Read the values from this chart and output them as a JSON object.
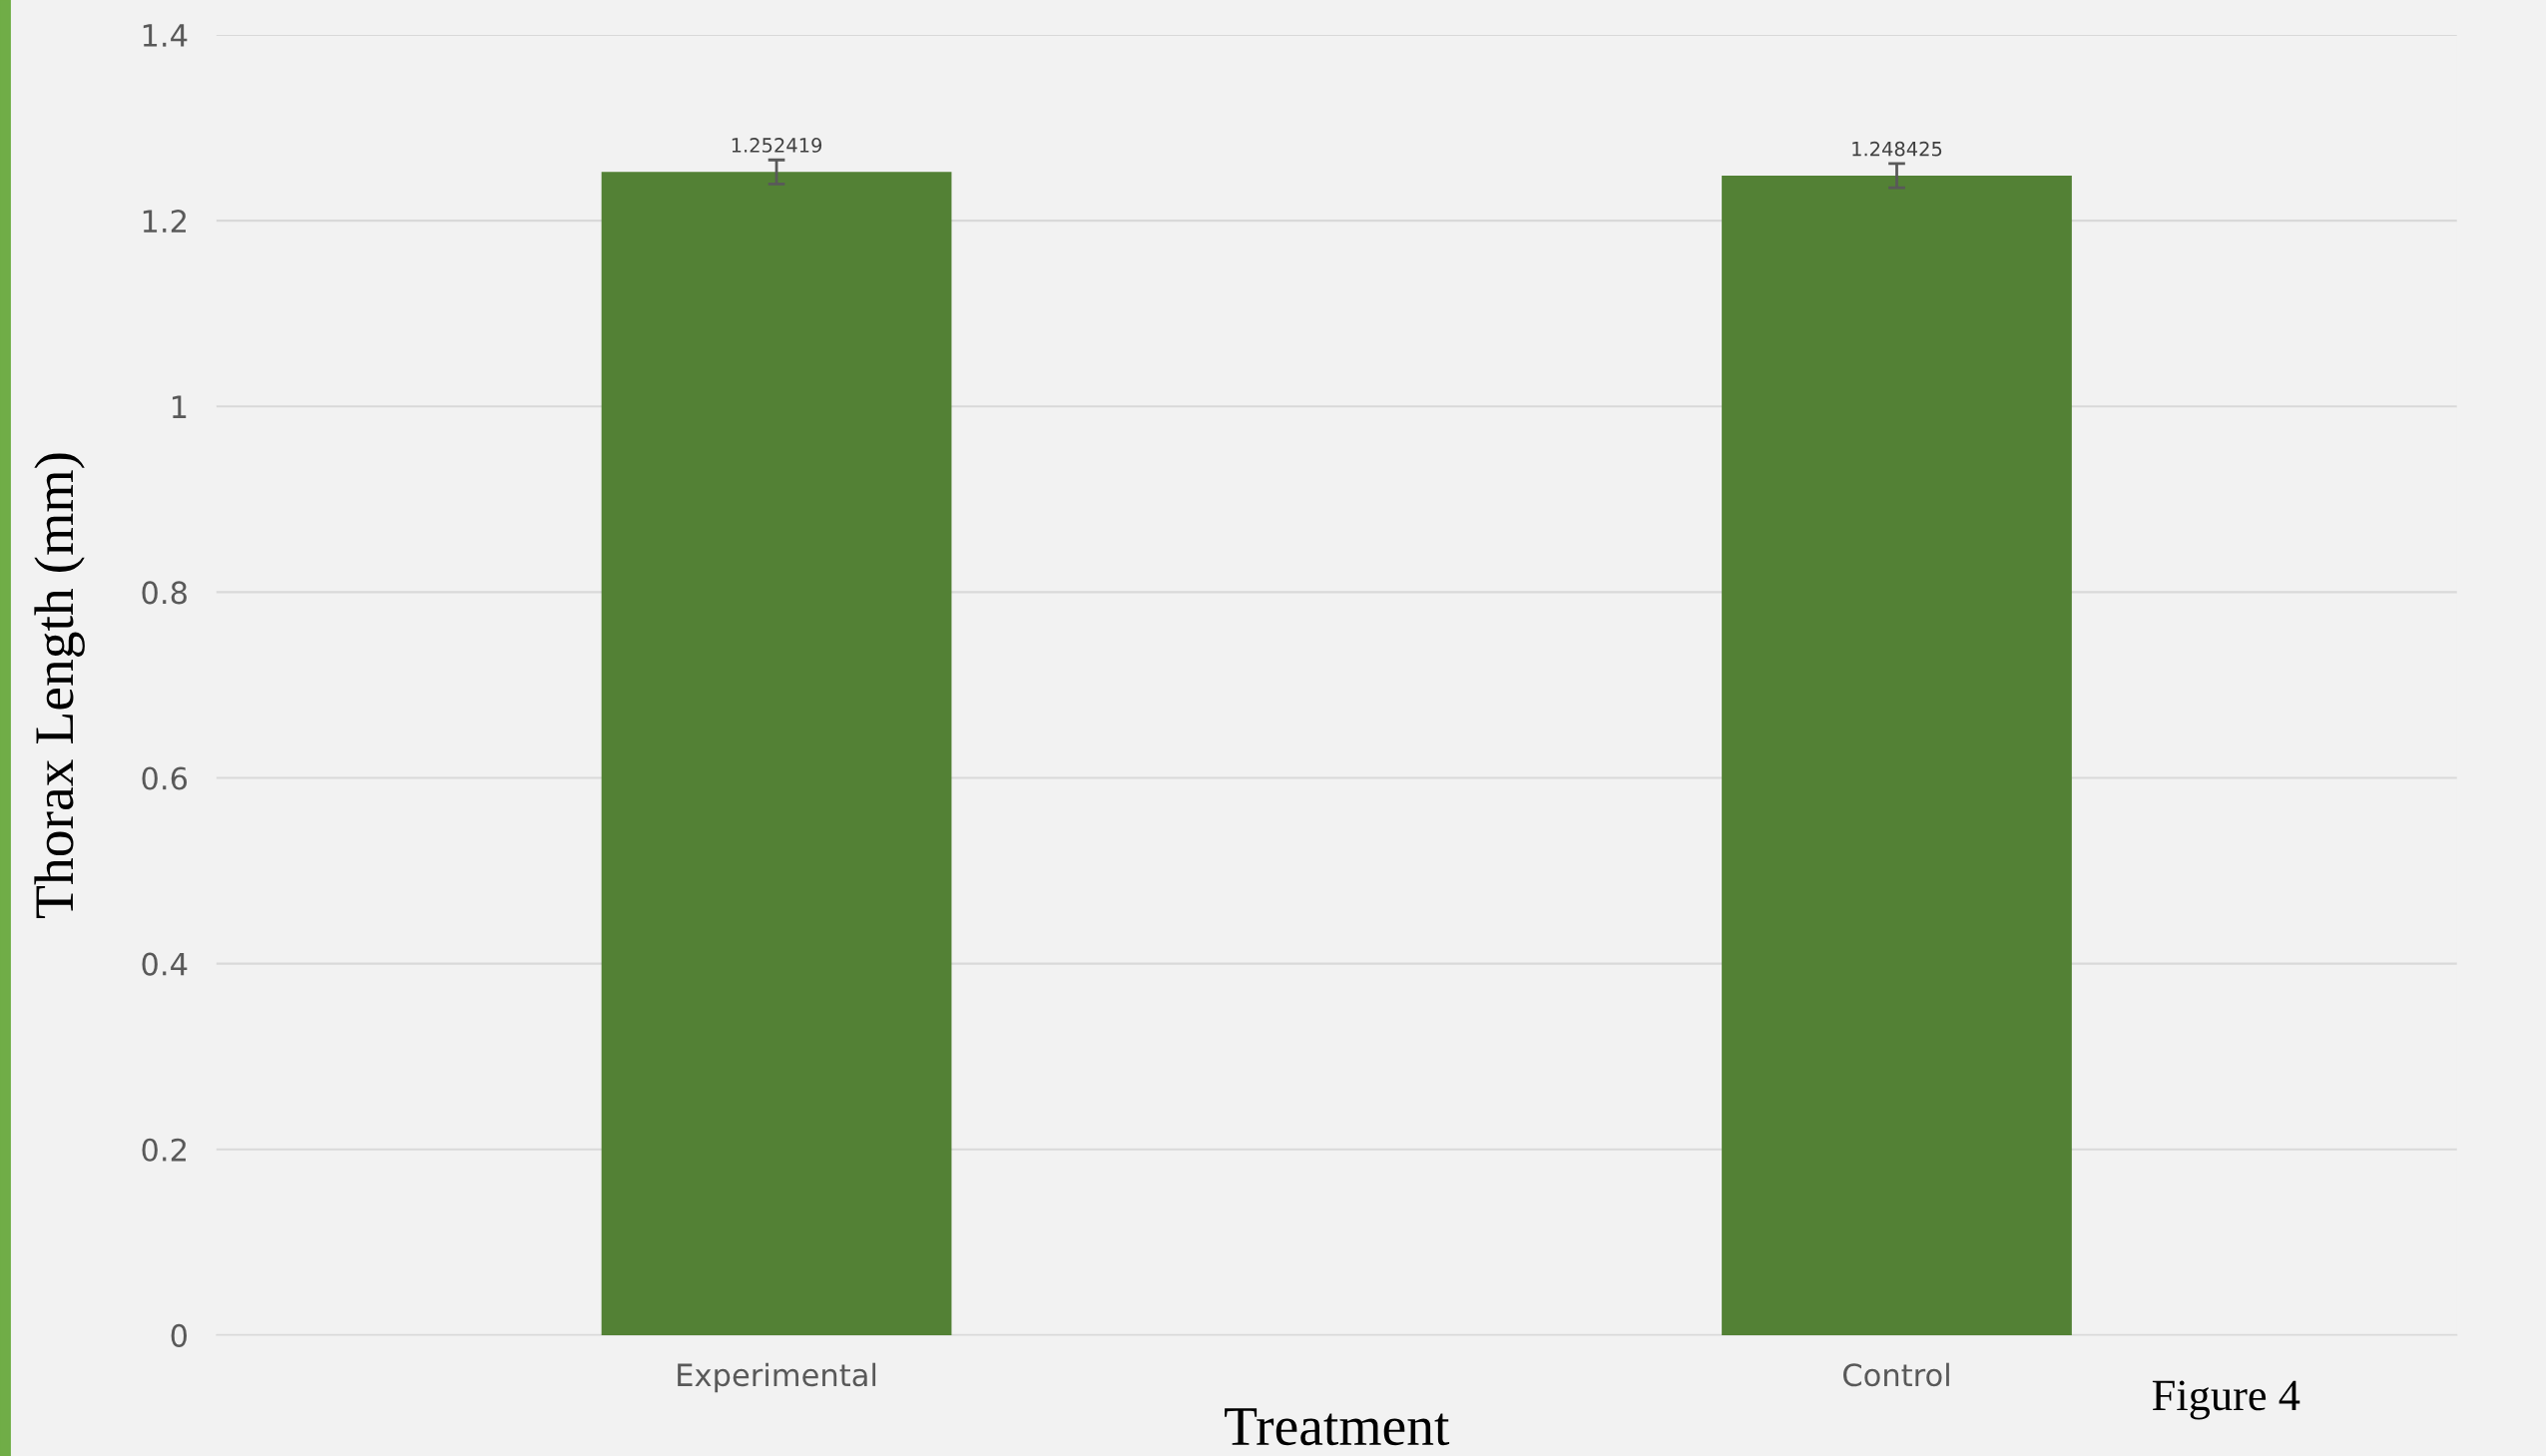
{
  "chart_data": {
    "type": "bar",
    "xlabel": "Treatment",
    "ylabel": "Thorax Length (mm)",
    "categories": [
      "Experimental",
      "Control"
    ],
    "values": [
      1.252419,
      1.248425
    ],
    "errors": [
      0.013,
      0.013
    ],
    "color": "#538135",
    "data_labels": true,
    "ylim": [
      0,
      1.4
    ],
    "yticks": [
      0,
      0.2,
      0.4,
      0.6,
      0.8,
      1,
      1.2,
      1.4
    ],
    "grid": "y",
    "annotations": [
      "Figure 4"
    ]
  }
}
